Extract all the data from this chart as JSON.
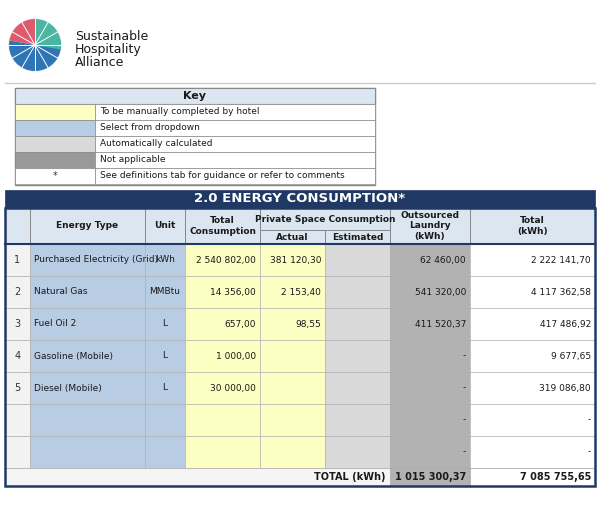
{
  "title_section": "2.0 ENERGY CONSUMPTION*",
  "key_title": "Key",
  "key_items": [
    {
      "color": "#fdffc2",
      "text": "To be manually completed by hotel",
      "symbol": ""
    },
    {
      "color": "#b8cce4",
      "text": "Select from dropdown",
      "symbol": ""
    },
    {
      "color": "#d9d9d9",
      "text": "Automatically calculated",
      "symbol": ""
    },
    {
      "color": "#999999",
      "text": "Not applicable",
      "symbol": ""
    },
    {
      "color": "#ffffff",
      "text": "See definitions tab for guidance or refer to comments",
      "symbol": "*"
    }
  ],
  "subheader": "Private Space Consumption",
  "rows": [
    {
      "num": "1",
      "type": "Purchased Electricity (Grid)",
      "unit": "kWh",
      "total": "2 540 802,00",
      "actual": "381 120,30",
      "estimated": "",
      "laundry": "62 460,00",
      "total_kwh": "2 222 141,70"
    },
    {
      "num": "2",
      "type": "Natural Gas",
      "unit": "MMBtu",
      "total": "14 356,00",
      "actual": "2 153,40",
      "estimated": "",
      "laundry": "541 320,00",
      "total_kwh": "4 117 362,58"
    },
    {
      "num": "3",
      "type": "Fuel Oil 2",
      "unit": "L",
      "total": "657,00",
      "actual": "98,55",
      "estimated": "",
      "laundry": "411 520,37",
      "total_kwh": "417 486,92"
    },
    {
      "num": "4",
      "type": "Gasoline (Mobile)",
      "unit": "L",
      "total": "1 000,00",
      "actual": "",
      "estimated": "",
      "laundry": "-",
      "total_kwh": "9 677,65"
    },
    {
      "num": "5",
      "type": "Diesel (Mobile)",
      "unit": "L",
      "total": "30 000,00",
      "actual": "",
      "estimated": "",
      "laundry": "-",
      "total_kwh": "319 086,80"
    },
    {
      "num": "",
      "type": "",
      "unit": "",
      "total": "",
      "actual": "",
      "estimated": "",
      "laundry": "-",
      "total_kwh": "-"
    },
    {
      "num": "",
      "type": "",
      "unit": "",
      "total": "",
      "actual": "",
      "estimated": "",
      "laundry": "-",
      "total_kwh": "-"
    }
  ],
  "total_row": {
    "label": "TOTAL (kWh)",
    "laundry": "1 015 300,37",
    "total_kwh": "7 085 755,65"
  },
  "col_yellow": "#fdffc2",
  "col_blue": "#b8cce4",
  "col_gray_light": "#d9d9d9",
  "col_gray_mid": "#b2b2b2",
  "col_white": "#ffffff",
  "col_header_bg": "#dce6f1",
  "header_dark": "#1f3864",
  "border_dark": "#1f3864",
  "table_border": "#808080"
}
